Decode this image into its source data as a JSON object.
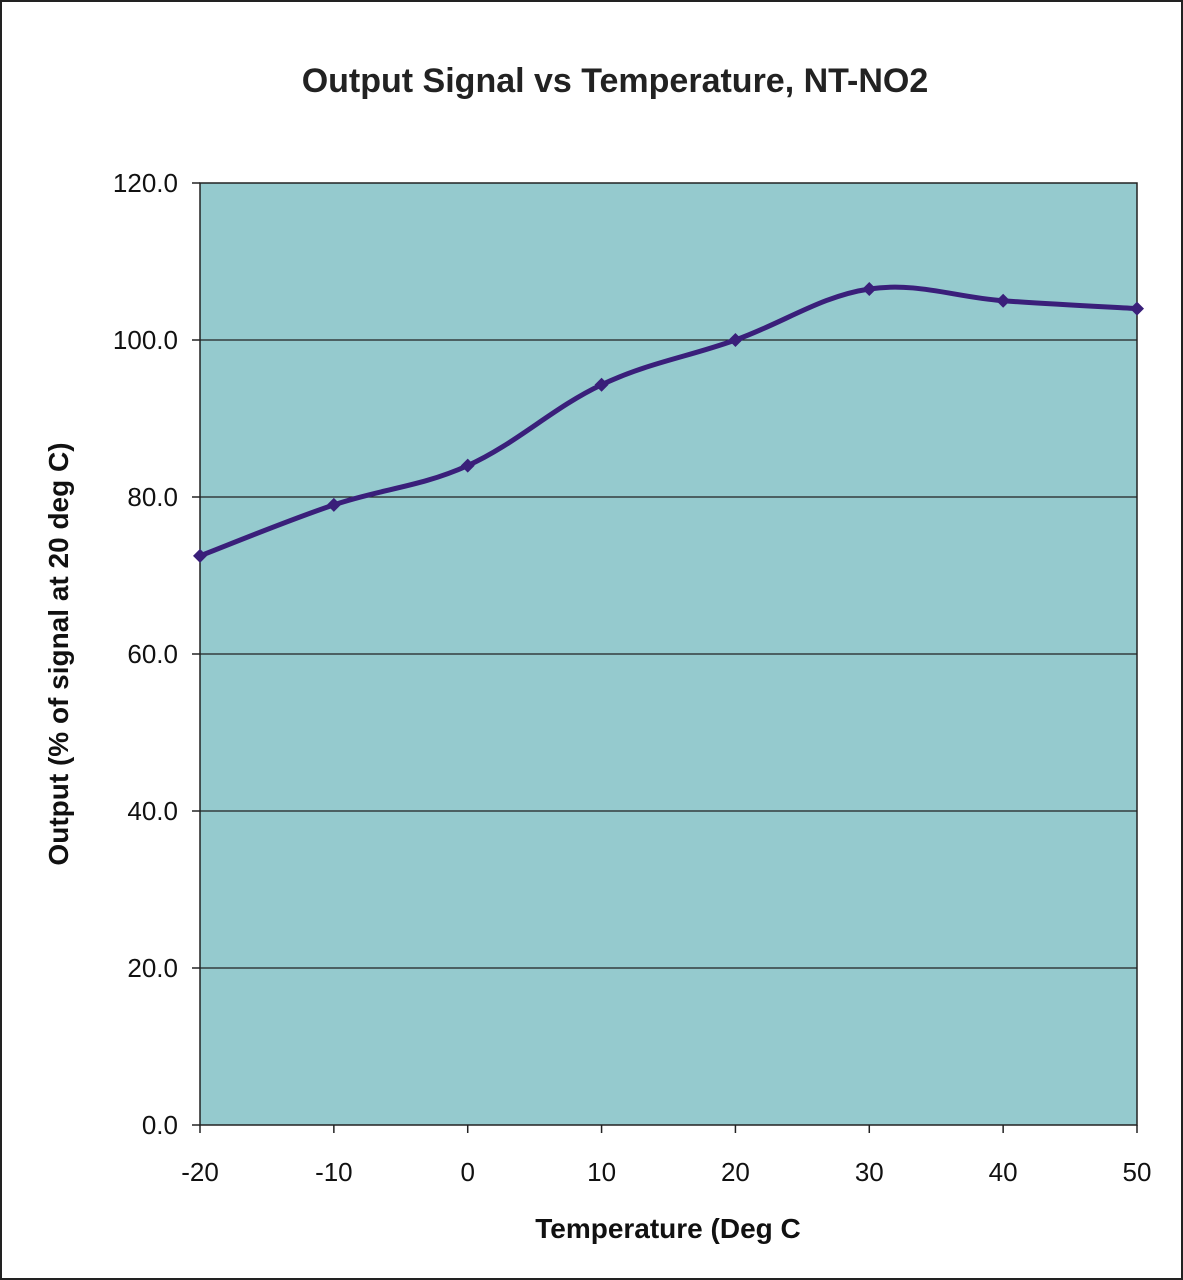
{
  "chart_data": {
    "type": "line",
    "title": "Output Signal vs Temperature, NT-NO2",
    "xlabel": "Temperature (Deg C",
    "ylabel": "Output (% of signal at 20 deg C)",
    "x_ticks": [
      "-20",
      "-10",
      "0",
      "10",
      "20",
      "30",
      "40",
      "50"
    ],
    "y_ticks": [
      "0.0",
      "20.0",
      "40.0",
      "60.0",
      "80.0",
      "100.0",
      "120.0"
    ],
    "xlim": [
      -20,
      50
    ],
    "ylim": [
      0,
      120
    ],
    "grid": "horizontal",
    "legend": "none",
    "series": [
      {
        "x": [
          -20,
          -10,
          0,
          10,
          20,
          30,
          40,
          50
        ],
        "y": [
          72.5,
          79.0,
          84.0,
          94.3,
          100.0,
          106.5,
          105.0,
          104.0
        ]
      }
    ],
    "colors": {
      "plot_background": "#95CACE",
      "line": "#3A1F7A",
      "grid": "#222222",
      "frame": "#222222"
    }
  }
}
